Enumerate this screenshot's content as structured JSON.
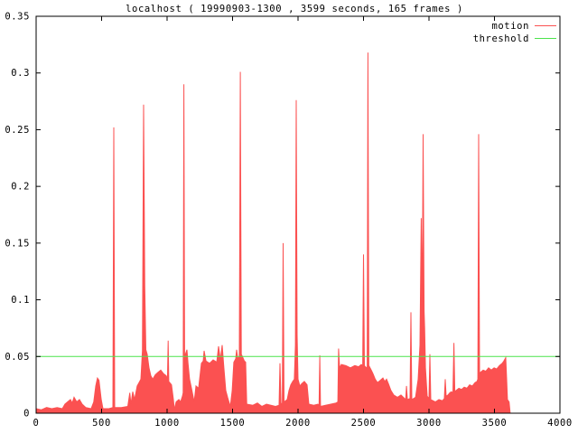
{
  "title": "localhost ( 19990903-1300 , 3599 seconds, 165 frames )",
  "legend": {
    "items": [
      {
        "label": "motion",
        "color": "#fb5151"
      },
      {
        "label": "threshold",
        "color": "#4ce34c"
      }
    ]
  },
  "colors": {
    "motion": "#fb5151",
    "threshold": "#4ce34c",
    "axis": "#000000",
    "background": "#ffffff"
  },
  "chart_data": {
    "type": "area",
    "title": "localhost ( 19990903-1300 , 3599 seconds, 165 frames )",
    "xlabel": "",
    "ylabel": "",
    "xlim": [
      0,
      4000
    ],
    "ylim": [
      0,
      0.35
    ],
    "x_ticks": [
      "0",
      "500",
      "1000",
      "1500",
      "2000",
      "2500",
      "3000",
      "3500",
      "4000"
    ],
    "x_tick_values": [
      0,
      500,
      1000,
      1500,
      2000,
      2500,
      3000,
      3500,
      4000
    ],
    "y_ticks": [
      "0",
      "0.05",
      "0.1",
      "0.15",
      "0.2",
      "0.25",
      "0.3",
      "0.35"
    ],
    "y_tick_values": [
      0,
      0.05,
      0.1,
      0.15,
      0.2,
      0.25,
      0.3,
      0.35
    ],
    "grid": false,
    "legend_position": "top-right",
    "series": [
      {
        "name": "motion",
        "type": "area",
        "color": "#fb5151",
        "points": [
          [
            0,
            0.004
          ],
          [
            40,
            0.003
          ],
          [
            80,
            0.005
          ],
          [
            120,
            0.004
          ],
          [
            160,
            0.005
          ],
          [
            200,
            0.004
          ],
          [
            220,
            0.008
          ],
          [
            240,
            0.01
          ],
          [
            262,
            0.012
          ],
          [
            276,
            0.009
          ],
          [
            290,
            0.014
          ],
          [
            310,
            0.01
          ],
          [
            331,
            0.012
          ],
          [
            352,
            0.008
          ],
          [
            379,
            0.005
          ],
          [
            420,
            0.004
          ],
          [
            440,
            0.01
          ],
          [
            455,
            0.024
          ],
          [
            468,
            0.031
          ],
          [
            480,
            0.029
          ],
          [
            497,
            0.012
          ],
          [
            510,
            0.004
          ],
          [
            555,
            0.004
          ],
          [
            586,
            0.005
          ],
          [
            593,
            0.252
          ],
          [
            600,
            0.005
          ],
          [
            650,
            0.005
          ],
          [
            700,
            0.006
          ],
          [
            715,
            0.018
          ],
          [
            724,
            0.008
          ],
          [
            738,
            0.019
          ],
          [
            752,
            0.012
          ],
          [
            772,
            0.024
          ],
          [
            786,
            0.027
          ],
          [
            800,
            0.03
          ],
          [
            812,
            0.055
          ],
          [
            821,
            0.272
          ],
          [
            830,
            0.112
          ],
          [
            838,
            0.056
          ],
          [
            848,
            0.052
          ],
          [
            862,
            0.04
          ],
          [
            876,
            0.033
          ],
          [
            890,
            0.03
          ],
          [
            910,
            0.034
          ],
          [
            931,
            0.036
          ],
          [
            952,
            0.038
          ],
          [
            972,
            0.035
          ],
          [
            993,
            0.033
          ],
          [
            1003,
            0.03
          ],
          [
            1008,
            0.064
          ],
          [
            1013,
            0.028
          ],
          [
            1034,
            0.025
          ],
          [
            1048,
            0.012
          ],
          [
            1056,
            0.003
          ],
          [
            1069,
            0.01
          ],
          [
            1090,
            0.012
          ],
          [
            1103,
            0.01
          ],
          [
            1117,
            0.015
          ],
          [
            1123,
            0.018
          ],
          [
            1128,
            0.29
          ],
          [
            1134,
            0.05
          ],
          [
            1152,
            0.056
          ],
          [
            1160,
            0.044
          ],
          [
            1172,
            0.03
          ],
          [
            1186,
            0.022
          ],
          [
            1207,
            0.01
          ],
          [
            1221,
            0.024
          ],
          [
            1241,
            0.022
          ],
          [
            1262,
            0.044
          ],
          [
            1276,
            0.046
          ],
          [
            1283,
            0.055
          ],
          [
            1297,
            0.046
          ],
          [
            1324,
            0.044
          ],
          [
            1352,
            0.047
          ],
          [
            1379,
            0.045
          ],
          [
            1393,
            0.059
          ],
          [
            1407,
            0.047
          ],
          [
            1421,
            0.06
          ],
          [
            1434,
            0.04
          ],
          [
            1448,
            0.02
          ],
          [
            1462,
            0.014
          ],
          [
            1483,
            0.006
          ],
          [
            1497,
            0.02
          ],
          [
            1510,
            0.045
          ],
          [
            1524,
            0.048
          ],
          [
            1531,
            0.056
          ],
          [
            1540,
            0.048
          ],
          [
            1552,
            0.05
          ],
          [
            1559,
            0.301
          ],
          [
            1567,
            0.052
          ],
          [
            1575,
            0.05
          ],
          [
            1590,
            0.046
          ],
          [
            1600,
            0.045
          ],
          [
            1608,
            0.008
          ],
          [
            1655,
            0.007
          ],
          [
            1690,
            0.009
          ],
          [
            1724,
            0.006
          ],
          [
            1759,
            0.008
          ],
          [
            1793,
            0.007
          ],
          [
            1828,
            0.006
          ],
          [
            1855,
            0.007
          ],
          [
            1862,
            0.044
          ],
          [
            1870,
            0.008
          ],
          [
            1880,
            0.009
          ],
          [
            1886,
            0.15
          ],
          [
            1893,
            0.01
          ],
          [
            1917,
            0.012
          ],
          [
            1931,
            0.02
          ],
          [
            1945,
            0.025
          ],
          [
            1959,
            0.028
          ],
          [
            1972,
            0.03
          ],
          [
            1980,
            0.06
          ],
          [
            1986,
            0.276
          ],
          [
            1993,
            0.069
          ],
          [
            2000,
            0.03
          ],
          [
            2014,
            0.024
          ],
          [
            2028,
            0.026
          ],
          [
            2048,
            0.028
          ],
          [
            2069,
            0.025
          ],
          [
            2083,
            0.008
          ],
          [
            2120,
            0.007
          ],
          [
            2152,
            0.008
          ],
          [
            2161,
            0.007
          ],
          [
            2166,
            0.051
          ],
          [
            2172,
            0.006
          ],
          [
            2210,
            0.007
          ],
          [
            2250,
            0.008
          ],
          [
            2290,
            0.009
          ],
          [
            2304,
            0.01
          ],
          [
            2310,
            0.057
          ],
          [
            2317,
            0.04
          ],
          [
            2331,
            0.043
          ],
          [
            2365,
            0.042
          ],
          [
            2400,
            0.04
          ],
          [
            2434,
            0.042
          ],
          [
            2462,
            0.041
          ],
          [
            2483,
            0.043
          ],
          [
            2494,
            0.042
          ],
          [
            2500,
            0.14
          ],
          [
            2507,
            0.042
          ],
          [
            2521,
            0.04
          ],
          [
            2528,
            0.041
          ],
          [
            2534,
            0.318
          ],
          [
            2541,
            0.042
          ],
          [
            2559,
            0.038
          ],
          [
            2572,
            0.035
          ],
          [
            2590,
            0.03
          ],
          [
            2607,
            0.027
          ],
          [
            2628,
            0.029
          ],
          [
            2648,
            0.031
          ],
          [
            2662,
            0.028
          ],
          [
            2676,
            0.03
          ],
          [
            2690,
            0.026
          ],
          [
            2710,
            0.02
          ],
          [
            2731,
            0.016
          ],
          [
            2759,
            0.014
          ],
          [
            2786,
            0.016
          ],
          [
            2814,
            0.013
          ],
          [
            2822,
            0.012
          ],
          [
            2828,
            0.024
          ],
          [
            2835,
            0.012
          ],
          [
            2855,
            0.013
          ],
          [
            2862,
            0.089
          ],
          [
            2869,
            0.012
          ],
          [
            2897,
            0.014
          ],
          [
            2917,
            0.03
          ],
          [
            2931,
            0.06
          ],
          [
            2941,
            0.172
          ],
          [
            2948,
            0.09
          ],
          [
            2955,
            0.246
          ],
          [
            2963,
            0.09
          ],
          [
            2967,
            0.075
          ],
          [
            2973,
            0.04
          ],
          [
            2986,
            0.015
          ],
          [
            3000,
            0.013
          ],
          [
            3007,
            0.052
          ],
          [
            3014,
            0.012
          ],
          [
            3048,
            0.01
          ],
          [
            3076,
            0.012
          ],
          [
            3103,
            0.011
          ],
          [
            3117,
            0.013
          ],
          [
            3124,
            0.03
          ],
          [
            3131,
            0.015
          ],
          [
            3145,
            0.016
          ],
          [
            3159,
            0.018
          ],
          [
            3172,
            0.019
          ],
          [
            3183,
            0.018
          ],
          [
            3190,
            0.062
          ],
          [
            3197,
            0.019
          ],
          [
            3207,
            0.02
          ],
          [
            3228,
            0.022
          ],
          [
            3248,
            0.021
          ],
          [
            3269,
            0.023
          ],
          [
            3290,
            0.022
          ],
          [
            3310,
            0.025
          ],
          [
            3331,
            0.024
          ],
          [
            3352,
            0.027
          ],
          [
            3366,
            0.028
          ],
          [
            3373,
            0.03
          ],
          [
            3379,
            0.246
          ],
          [
            3386,
            0.034
          ],
          [
            3393,
            0.036
          ],
          [
            3414,
            0.038
          ],
          [
            3434,
            0.037
          ],
          [
            3455,
            0.04
          ],
          [
            3476,
            0.038
          ],
          [
            3497,
            0.04
          ],
          [
            3517,
            0.039
          ],
          [
            3538,
            0.042
          ],
          [
            3559,
            0.044
          ],
          [
            3572,
            0.046
          ],
          [
            3586,
            0.049
          ],
          [
            3593,
            0.03
          ],
          [
            3599,
            0.012
          ],
          [
            3612,
            0.01
          ],
          [
            3620,
            0.0
          ]
        ]
      },
      {
        "name": "threshold",
        "type": "hline",
        "color": "#4ce34c",
        "value": 0.05
      }
    ]
  }
}
